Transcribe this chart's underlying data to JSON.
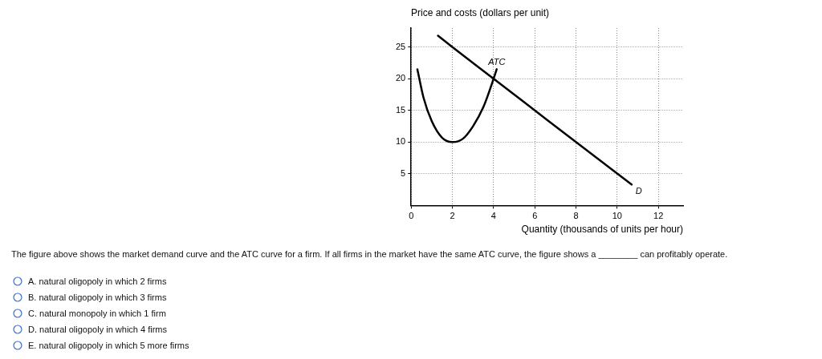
{
  "chart_data": {
    "type": "line",
    "ylabel": "Price and costs (dollars per unit)",
    "xlabel": "Quantity (thousands of units per hour)",
    "xlim": [
      0,
      13.2
    ],
    "ylim": [
      0,
      28
    ],
    "xticks": [
      0,
      2,
      4,
      6,
      8,
      10,
      12
    ],
    "yticks": [
      5,
      10,
      15,
      20,
      25
    ],
    "grid": true,
    "legend": false,
    "marker": "none",
    "line_style": "solid",
    "series": [
      {
        "name": "ATC",
        "color": "#000000",
        "x": [
          0.3,
          0.6,
          1,
          1.5,
          2,
          2.5,
          3,
          3.5,
          4,
          4.15
        ],
        "values": [
          21.5,
          17,
          13.3,
          10.7,
          10,
          10.5,
          12.5,
          15.5,
          20,
          21.5
        ]
      },
      {
        "name": "D",
        "color": "#000000",
        "x": [
          1.3,
          2,
          4,
          6,
          8,
          10.7
        ],
        "values": [
          26.8,
          25,
          20,
          15,
          10,
          3.3
        ]
      }
    ],
    "annotations": [
      "The figure above shows the market demand curve and the ATC curve for a firm. If all firms in the market have the same ATC curve, the figure shows a ________ can profitably operate.",
      "A. natural oligopoly in which 2 firms",
      "B. natural oligopoly in which 3 firms",
      "C. natural monopoly in which 1 firm",
      "D. natural oligopoly in which 4 firms",
      "E. natural oligopoly in which 5 more firms"
    ]
  }
}
